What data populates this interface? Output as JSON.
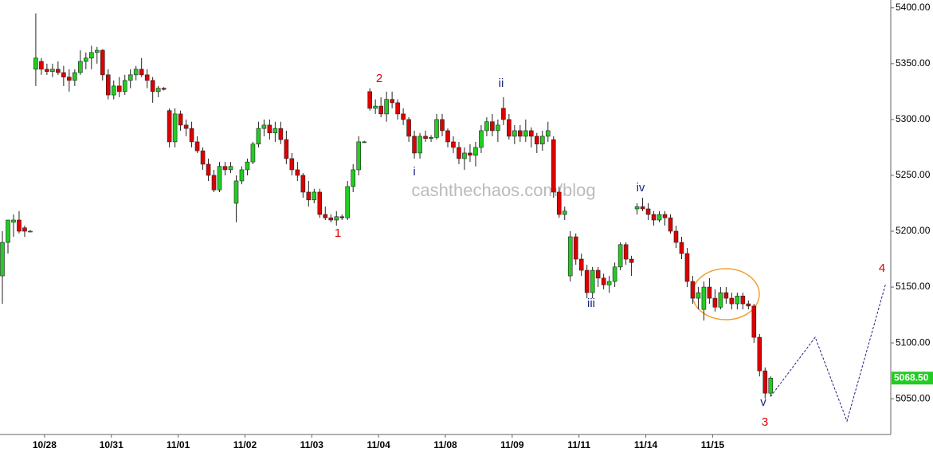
{
  "chart_data": {
    "type": "candlestick",
    "watermark": "cashthechaos.com/blog",
    "xlim": [
      0,
      160
    ],
    "xticks": [
      {
        "value": 8,
        "label": "10/28"
      },
      {
        "value": 20,
        "label": "10/31"
      },
      {
        "value": 32,
        "label": "11/01"
      },
      {
        "value": 44,
        "label": "11/02"
      },
      {
        "value": 56,
        "label": "11/03"
      },
      {
        "value": 68,
        "label": "11/04"
      },
      {
        "value": 80,
        "label": "11/08"
      },
      {
        "value": 92,
        "label": "11/09"
      },
      {
        "value": 104,
        "label": "11/11"
      },
      {
        "value": 116,
        "label": "11/14"
      },
      {
        "value": 128,
        "label": "11/15"
      }
    ],
    "ylim": [
      5018,
      5407
    ],
    "yticks": [
      {
        "value": 5050,
        "label": "5050.00"
      },
      {
        "value": 5100,
        "label": "5100.00"
      },
      {
        "value": 5150,
        "label": "5150.00"
      },
      {
        "value": 5200,
        "label": "5200.00"
      },
      {
        "value": 5250,
        "label": "5250.00"
      },
      {
        "value": 5300,
        "label": "5300.00"
      },
      {
        "value": 5350,
        "label": "5350.00"
      },
      {
        "value": 5400,
        "label": "5400.00"
      }
    ],
    "last_price": {
      "value": 5068.5,
      "label": "5068.50"
    },
    "up_color": "#22cc22",
    "down_color": "#dd0000",
    "candles": [
      [
        5160,
        5200,
        5135,
        5190
      ],
      [
        5190,
        5210,
        5180,
        5210
      ],
      [
        5208,
        5215,
        5195,
        5210
      ],
      [
        5210,
        5218,
        5198,
        5200
      ],
      [
        5203,
        5205,
        5195,
        5200
      ],
      [
        5200,
        5201,
        5199,
        5200
      ],
      [
        5345,
        5395,
        5330,
        5355
      ],
      [
        5352,
        5355,
        5340,
        5345
      ],
      [
        5345,
        5350,
        5340,
        5343
      ],
      [
        5343,
        5350,
        5338,
        5345
      ],
      [
        5345,
        5352,
        5340,
        5342
      ],
      [
        5342,
        5348,
        5330,
        5338
      ],
      [
        5338,
        5345,
        5325,
        5335
      ],
      [
        5335,
        5345,
        5330,
        5342
      ],
      [
        5342,
        5362,
        5340,
        5352
      ],
      [
        5352,
        5360,
        5345,
        5355
      ],
      [
        5355,
        5366,
        5345,
        5360
      ],
      [
        5360,
        5365,
        5350,
        5362
      ],
      [
        5362,
        5363,
        5335,
        5340
      ],
      [
        5340,
        5345,
        5318,
        5322
      ],
      [
        5322,
        5335,
        5318,
        5330
      ],
      [
        5330,
        5338,
        5320,
        5325
      ],
      [
        5325,
        5340,
        5322,
        5335
      ],
      [
        5335,
        5345,
        5328,
        5340
      ],
      [
        5340,
        5348,
        5335,
        5345
      ],
      [
        5345,
        5355,
        5338,
        5340
      ],
      [
        5340,
        5345,
        5328,
        5335
      ],
      [
        5335,
        5338,
        5315,
        5325
      ],
      [
        5325,
        5330,
        5320,
        5328
      ],
      [
        5328,
        5329,
        5326,
        5327
      ],
      [
        5308,
        5310,
        5275,
        5280
      ],
      [
        5280,
        5310,
        5275,
        5305
      ],
      [
        5305,
        5308,
        5290,
        5295
      ],
      [
        5295,
        5300,
        5285,
        5292
      ],
      [
        5292,
        5298,
        5275,
        5280
      ],
      [
        5280,
        5285,
        5270,
        5272
      ],
      [
        5272,
        5275,
        5255,
        5260
      ],
      [
        5260,
        5265,
        5245,
        5250
      ],
      [
        5250,
        5255,
        5235,
        5237
      ],
      [
        5237,
        5262,
        5235,
        5258
      ],
      [
        5258,
        5262,
        5250,
        5255
      ],
      [
        5255,
        5262,
        5252,
        5258
      ],
      [
        5225,
        5250,
        5208,
        5245
      ],
      [
        5245,
        5258,
        5242,
        5255
      ],
      [
        5255,
        5265,
        5250,
        5262
      ],
      [
        5262,
        5280,
        5260,
        5278
      ],
      [
        5278,
        5298,
        5275,
        5292
      ],
      [
        5292,
        5300,
        5285,
        5295
      ],
      [
        5295,
        5300,
        5282,
        5288
      ],
      [
        5288,
        5298,
        5280,
        5292
      ],
      [
        5292,
        5298,
        5278,
        5282
      ],
      [
        5282,
        5290,
        5260,
        5265
      ],
      [
        5265,
        5270,
        5250,
        5255
      ],
      [
        5255,
        5262,
        5245,
        5250
      ],
      [
        5250,
        5252,
        5230,
        5235
      ],
      [
        5235,
        5245,
        5222,
        5228
      ],
      [
        5228,
        5238,
        5225,
        5235
      ],
      [
        5235,
        5238,
        5212,
        5215
      ],
      [
        5215,
        5222,
        5210,
        5212
      ],
      [
        5212,
        5215,
        5208,
        5210
      ],
      [
        5210,
        5218,
        5205,
        5213
      ],
      [
        5213,
        5215,
        5210,
        5212
      ],
      [
        5212,
        5245,
        5210,
        5240
      ],
      [
        5240,
        5260,
        5235,
        5255
      ],
      [
        5255,
        5285,
        5250,
        5280
      ],
      [
        5280,
        5281,
        5279,
        5280
      ],
      [
        5325,
        5328,
        5308,
        5310
      ],
      [
        5310,
        5318,
        5305,
        5312
      ],
      [
        5312,
        5320,
        5302,
        5305
      ],
      [
        5305,
        5325,
        5298,
        5318
      ],
      [
        5318,
        5325,
        5310,
        5315
      ],
      [
        5315,
        5318,
        5300,
        5305
      ],
      [
        5305,
        5310,
        5295,
        5300
      ],
      [
        5300,
        5302,
        5280,
        5285
      ],
      [
        5285,
        5290,
        5265,
        5270
      ],
      [
        5270,
        5288,
        5265,
        5285
      ],
      [
        5285,
        5290,
        5280,
        5283
      ],
      [
        5283,
        5286,
        5280,
        5284
      ],
      [
        5284,
        5305,
        5282,
        5300
      ],
      [
        5300,
        5305,
        5285,
        5290
      ],
      [
        5290,
        5292,
        5275,
        5280
      ],
      [
        5280,
        5285,
        5270,
        5275
      ],
      [
        5275,
        5280,
        5260,
        5265
      ],
      [
        5265,
        5275,
        5255,
        5270
      ],
      [
        5270,
        5278,
        5262,
        5268
      ],
      [
        5268,
        5280,
        5258,
        5275
      ],
      [
        5275,
        5295,
        5270,
        5290
      ],
      [
        5290,
        5302,
        5285,
        5298
      ],
      [
        5298,
        5305,
        5285,
        5290
      ],
      [
        5290,
        5300,
        5280,
        5295
      ],
      [
        5310,
        5320,
        5295,
        5300
      ],
      [
        5300,
        5305,
        5282,
        5285
      ],
      [
        5285,
        5295,
        5278,
        5290
      ],
      [
        5290,
        5295,
        5280,
        5285
      ],
      [
        5285,
        5300,
        5280,
        5290
      ],
      [
        5290,
        5293,
        5275,
        5285
      ],
      [
        5285,
        5288,
        5270,
        5278
      ],
      [
        5278,
        5290,
        5272,
        5285
      ],
      [
        5285,
        5298,
        5280,
        5290
      ],
      [
        5282,
        5285,
        5230,
        5235
      ],
      [
        5235,
        5240,
        5212,
        5215
      ],
      [
        5215,
        5222,
        5210,
        5218
      ],
      [
        5160,
        5200,
        5155,
        5195
      ],
      [
        5195,
        5198,
        5170,
        5175
      ],
      [
        5175,
        5180,
        5160,
        5165
      ],
      [
        5165,
        5170,
        5140,
        5145
      ],
      [
        5145,
        5168,
        5140,
        5165
      ],
      [
        5165,
        5168,
        5150,
        5158
      ],
      [
        5158,
        5162,
        5148,
        5152
      ],
      [
        5152,
        5160,
        5145,
        5155
      ],
      [
        5155,
        5172,
        5150,
        5168
      ],
      [
        5168,
        5190,
        5165,
        5188
      ],
      [
        5188,
        5190,
        5170,
        5175
      ],
      [
        5175,
        5178,
        5160,
        5172
      ],
      [
        5220,
        5225,
        5215,
        5222
      ],
      [
        5222,
        5230,
        5218,
        5220
      ],
      [
        5220,
        5225,
        5210,
        5215
      ],
      [
        5215,
        5218,
        5205,
        5210
      ],
      [
        5210,
        5218,
        5208,
        5215
      ],
      [
        5215,
        5218,
        5205,
        5212
      ],
      [
        5212,
        5215,
        5198,
        5200
      ],
      [
        5200,
        5205,
        5185,
        5190
      ],
      [
        5190,
        5195,
        5175,
        5180
      ],
      [
        5180,
        5185,
        5150,
        5155
      ],
      [
        5155,
        5160,
        5135,
        5140
      ],
      [
        5140,
        5150,
        5130,
        5145
      ],
      [
        5130,
        5155,
        5120,
        5150
      ],
      [
        5150,
        5158,
        5135,
        5140
      ],
      [
        5140,
        5148,
        5128,
        5132
      ],
      [
        5132,
        5150,
        5130,
        5145
      ],
      [
        5145,
        5150,
        5135,
        5140
      ],
      [
        5140,
        5145,
        5130,
        5135
      ],
      [
        5135,
        5145,
        5130,
        5142
      ],
      [
        5142,
        5145,
        5130,
        5135
      ],
      [
        5135,
        5138,
        5130,
        5133
      ],
      [
        5133,
        5135,
        5100,
        5105
      ],
      [
        5105,
        5108,
        5070,
        5075
      ],
      [
        5075,
        5078,
        5050,
        5055
      ],
      [
        5055,
        5070,
        5052,
        5068.5
      ]
    ],
    "forecast": {
      "color": "#1a237e",
      "x": [
        138,
        146,
        151.7,
        158.6
      ],
      "values": [
        5052,
        5105,
        5030,
        5152
      ]
    },
    "wave_labels": [
      "1",
      "2",
      "3",
      "4",
      "i",
      "ii",
      "iii",
      "iv",
      "v"
    ]
  }
}
